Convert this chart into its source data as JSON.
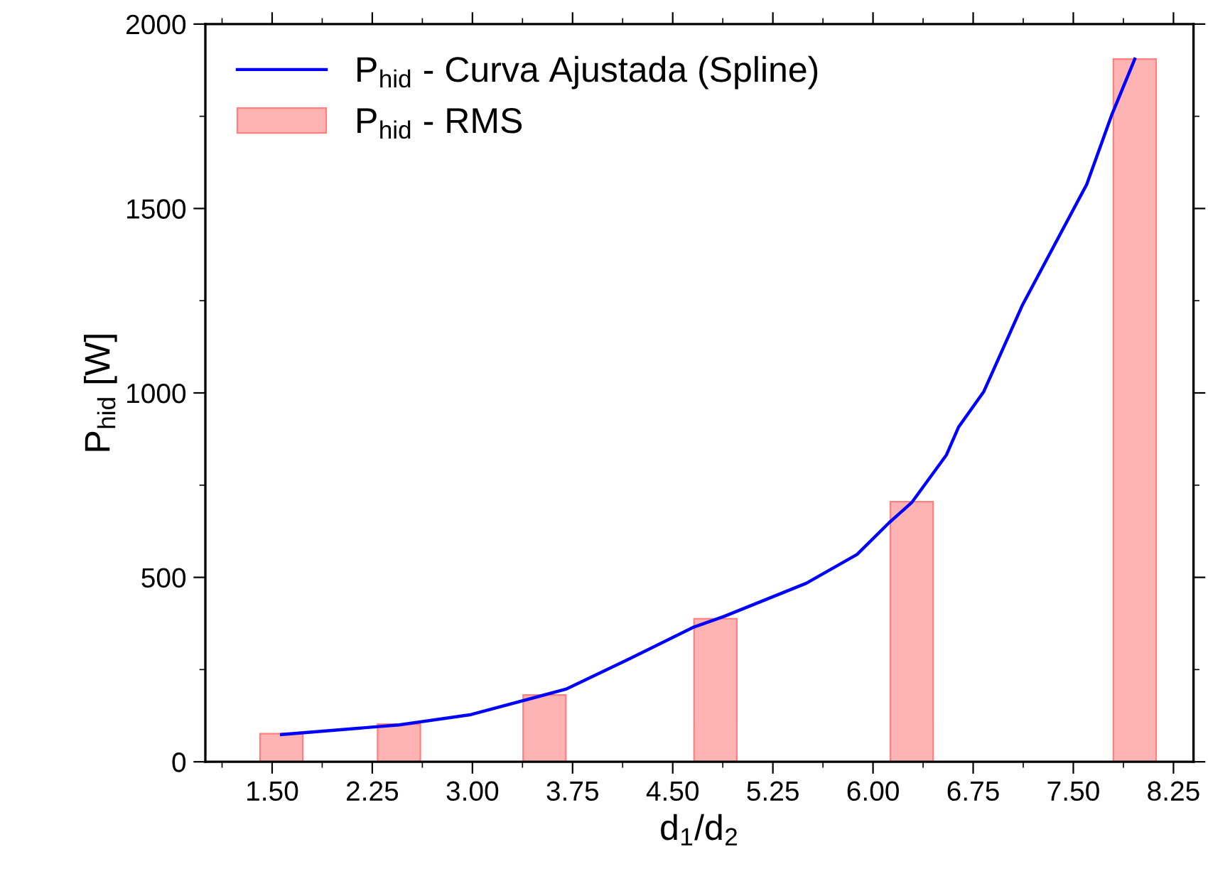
{
  "chart_data": {
    "type": "bar",
    "xlabel": "d$_{1}$/d$_{2}$",
    "ylabel": "P$_{hid}$ [W]",
    "xlim": [
      1.0,
      8.4
    ],
    "xticks": [
      {
        "value": 1.5,
        "label": "1.50"
      },
      2.25,
      {
        "value": 3,
        "label": "3.00"
      },
      3.75,
      {
        "value": 4.5,
        "label": "4.50"
      },
      5.25,
      {
        "value": 6,
        "label": "6.00"
      },
      6.75,
      {
        "value": 7.5,
        "label": "7.50"
      },
      8.25
    ],
    "ylim": [
      0,
      2000
    ],
    "yticks": [
      0,
      500,
      1000,
      1500,
      2000
    ],
    "grid": false,
    "legend": "top left",
    "series": [
      {
        "name": "P$_{hid}$ - Curva Ajustada (Spline)",
        "type": "line",
        "color": "#0000ff",
        "line_style": "solid",
        "x": [
          1.57,
          2.45,
          2.99,
          3.7,
          4.17,
          4.65,
          4.89,
          5.5,
          5.88,
          6.12,
          6.29,
          6.55,
          6.64,
          6.83,
          7.12,
          7.6,
          7.79,
          7.96
        ],
        "values": [
          74,
          100,
          128,
          197,
          278,
          364,
          395,
          484,
          562,
          648,
          703,
          832,
          907,
          1004,
          1239,
          1565,
          1756,
          1905
        ]
      },
      {
        "name": "P$_{hid}$ - RMS",
        "color": "#ff8080",
        "x": [
          1.57,
          2.45,
          3.54,
          4.82,
          6.29,
          7.96
        ],
        "values": [
          76,
          102,
          181,
          388,
          705,
          1905
        ]
      }
    ]
  }
}
